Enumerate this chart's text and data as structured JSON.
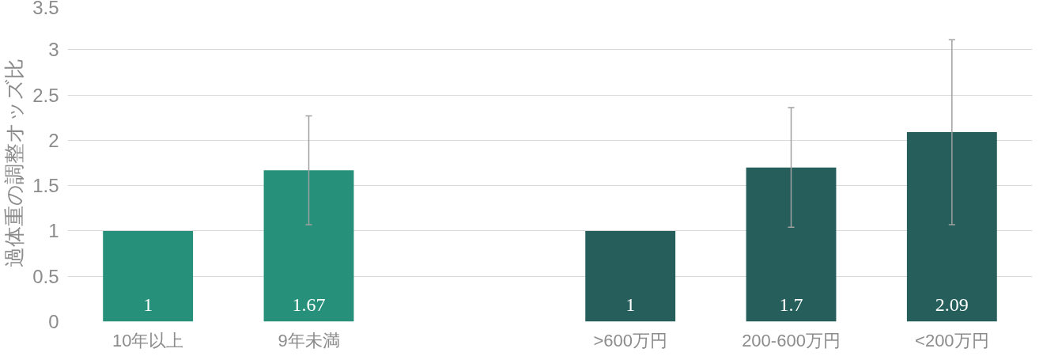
{
  "chart_data": {
    "type": "bar",
    "ylabel": "過体重の調整オッズ比",
    "categories": [
      "10年以上",
      "9年未満",
      null,
      ">600万円",
      "200-600万円",
      "<200万円"
    ],
    "values": [
      1,
      1.67,
      null,
      1,
      1.7,
      2.09
    ],
    "colors": [
      "#26907a",
      "#26907a",
      null,
      "#255e5a",
      "#255e5a",
      "#255e5a"
    ],
    "errors": [
      null,
      [
        1.07,
        2.27
      ],
      null,
      null,
      [
        1.04,
        2.36
      ],
      [
        1.07,
        3.11
      ]
    ],
    "ylim": [
      0,
      3.5
    ],
    "yticks": [
      0,
      0.5,
      1,
      1.5,
      2,
      2.5,
      3,
      3.5
    ],
    "grid": "y",
    "data_labels": true
  }
}
